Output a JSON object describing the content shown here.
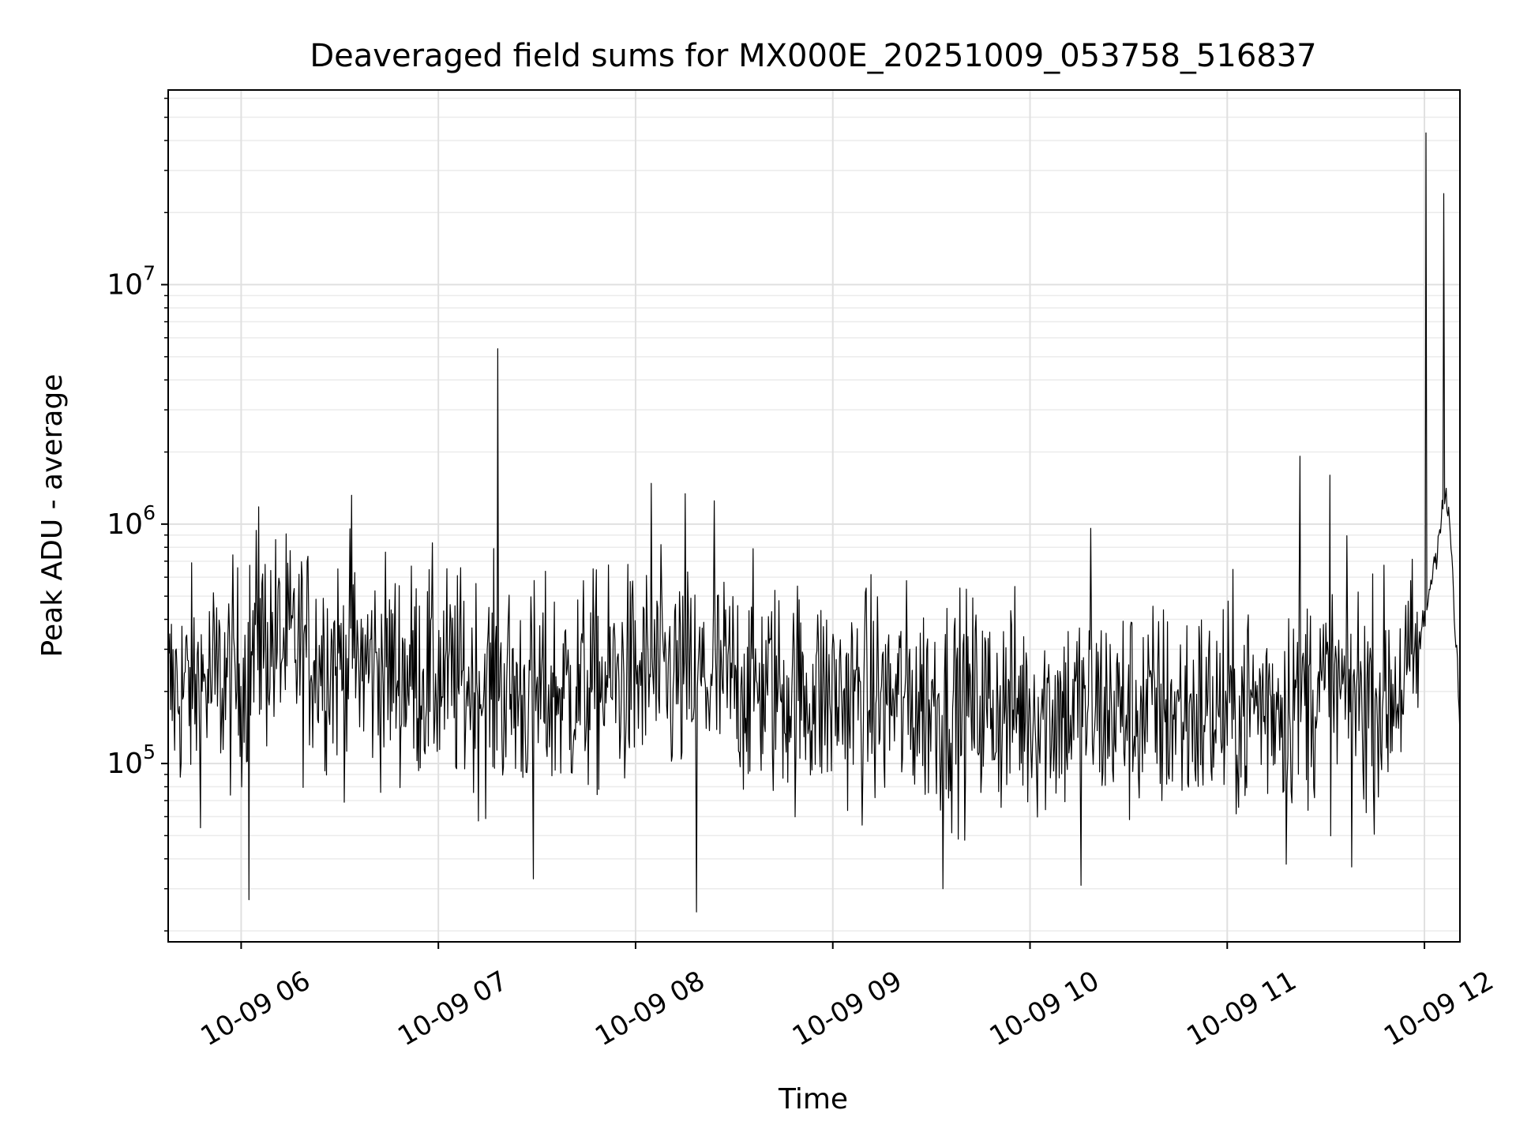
{
  "chart_data": {
    "type": "line",
    "title": "Deaveraged field sums for MX000E_20251009_053758_516837",
    "xlabel": "Time",
    "ylabel": "Peak ADU - average",
    "yscale": "log",
    "grid": true,
    "x_unit": "hours",
    "xlim": [
      5.63,
      12.18
    ],
    "ylim": [
      18000,
      65000000
    ],
    "x_ticks": [
      {
        "value": 6,
        "label": "10-09 06"
      },
      {
        "value": 7,
        "label": "10-09 07"
      },
      {
        "value": 8,
        "label": "10-09 08"
      },
      {
        "value": 9,
        "label": "10-09 09"
      },
      {
        "value": 10,
        "label": "10-09 10"
      },
      {
        "value": 11,
        "label": "10-09 11"
      },
      {
        "value": 12,
        "label": "10-09 12"
      }
    ],
    "y_ticks": [
      {
        "value": 100000,
        "base": "10",
        "exp": "5"
      },
      {
        "value": 1000000,
        "base": "10",
        "exp": "6"
      },
      {
        "value": 10000000,
        "base": "10",
        "exp": "7"
      }
    ],
    "series": [
      {
        "name": "field sums",
        "color": "#000000",
        "baseline": {
          "x": [
            5.63,
            6.0,
            6.1,
            6.5,
            6.6,
            7.0,
            7.5,
            8.0,
            8.5,
            9.0,
            9.5,
            10.0,
            10.5,
            11.0,
            11.4,
            11.8,
            11.95,
            12.0,
            12.05,
            12.1,
            12.13,
            12.18
          ],
          "y": [
            200000,
            230000,
            330000,
            270000,
            260000,
            230000,
            190000,
            230000,
            220000,
            190000,
            180000,
            170000,
            165000,
            165000,
            200000,
            190000,
            250000,
            400000,
            700000,
            1300000,
            1000000,
            140000
          ]
        },
        "spikes": [
          {
            "x": 6.04,
            "y": 27000
          },
          {
            "x": 6.09,
            "y": 1180000
          },
          {
            "x": 6.56,
            "y": 1320000
          },
          {
            "x": 7.3,
            "y": 5400000
          },
          {
            "x": 7.48,
            "y": 33000
          },
          {
            "x": 8.08,
            "y": 1480000
          },
          {
            "x": 8.25,
            "y": 1340000
          },
          {
            "x": 8.31,
            "y": 24000
          },
          {
            "x": 8.4,
            "y": 1250000
          },
          {
            "x": 9.56,
            "y": 30000
          },
          {
            "x": 10.26,
            "y": 31000
          },
          {
            "x": 10.31,
            "y": 960000
          },
          {
            "x": 11.3,
            "y": 38000
          },
          {
            "x": 11.37,
            "y": 1920000
          },
          {
            "x": 11.52,
            "y": 1600000
          },
          {
            "x": 11.63,
            "y": 37000
          },
          {
            "x": 12.01,
            "y": 43000000
          },
          {
            "x": 12.1,
            "y": 24000000
          }
        ],
        "points": 1600,
        "noise_decades": 0.32
      }
    ]
  }
}
